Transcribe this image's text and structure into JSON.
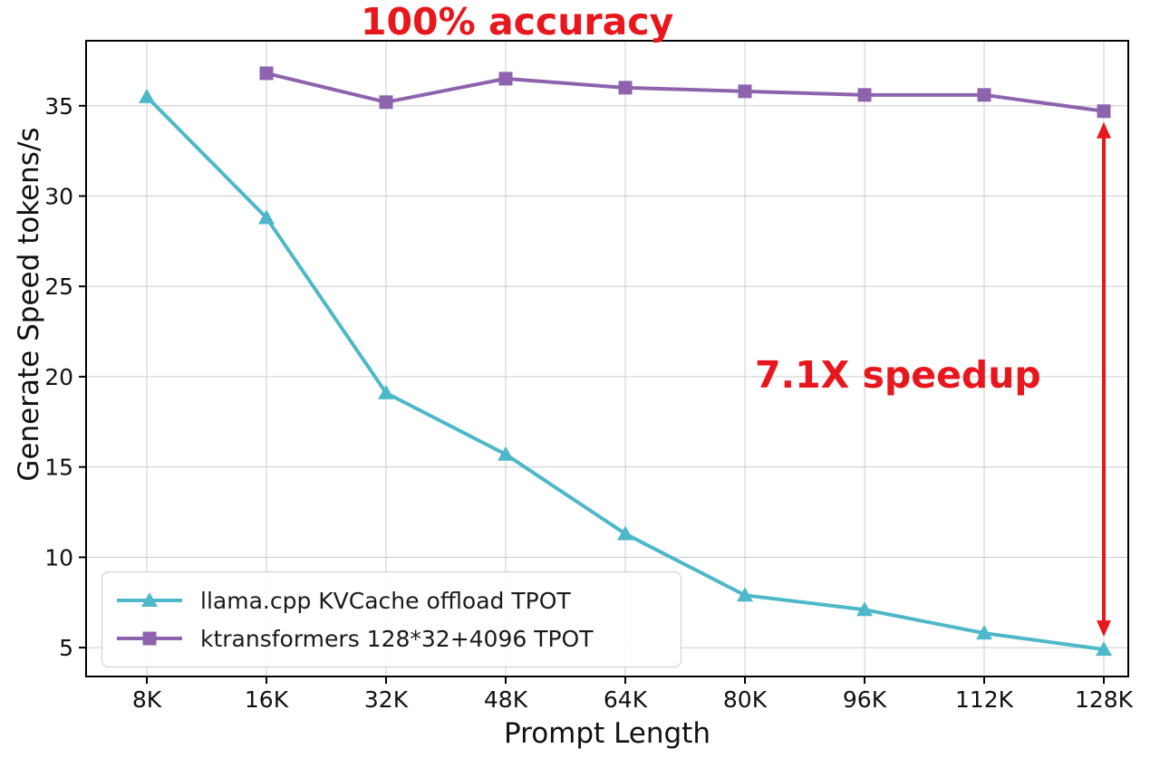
{
  "chart_data": {
    "type": "line",
    "xlabel": "Prompt Length",
    "ylabel": "Generate Speed tokens/s",
    "categories": [
      "8K",
      "16K",
      "32K",
      "48K",
      "64K",
      "80K",
      "96K",
      "112K",
      "128K"
    ],
    "yticks": [
      5,
      10,
      15,
      20,
      25,
      30,
      35
    ],
    "ylim": [
      3.4,
      38.6
    ],
    "grid": true,
    "legend_position": "lower left",
    "series": [
      {
        "name": "llama.cpp KVCache offload TPOT",
        "color": "#4db8c9",
        "marker": "triangle",
        "values": [
          35.5,
          28.8,
          19.1,
          15.7,
          11.3,
          7.9,
          7.1,
          5.8,
          4.9
        ]
      },
      {
        "name": "ktransformers 128*32+4096 TPOT",
        "color": "#8d63ae",
        "marker": "square",
        "values": [
          null,
          36.8,
          35.2,
          36.5,
          36.0,
          35.8,
          35.6,
          35.6,
          34.7
        ]
      }
    ],
    "annotations": {
      "accuracy": {
        "text": "100% accuracy",
        "color": "#e8171d"
      },
      "speedup": {
        "text": "7.1X speedup",
        "color": "#e8171d"
      }
    },
    "arrow": {
      "x_category": "128K",
      "y_top": 34.7,
      "y_bottom": 5.0,
      "color": "#e8171d"
    }
  },
  "axis_style": {
    "grid_color": "#cccccc",
    "spine_color": "#000000",
    "tick_label_color": "#111111"
  }
}
